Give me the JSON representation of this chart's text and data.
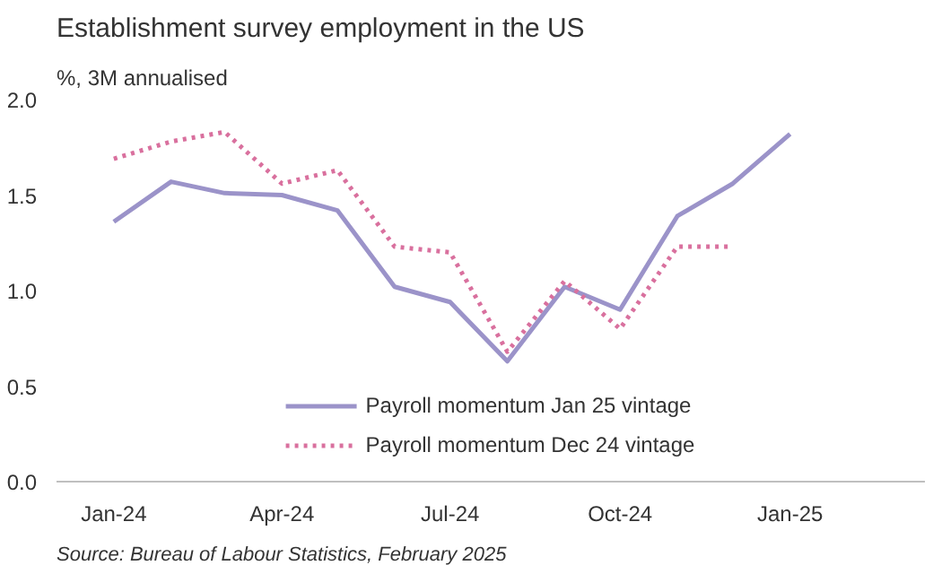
{
  "chart_data": {
    "type": "line",
    "title": "Establishment survey employment in the US",
    "subtitle": "%, 3M annualised",
    "x": [
      "2024-01",
      "2024-02",
      "2024-03",
      "2024-04",
      "2024-05",
      "2024-06",
      "2024-07",
      "2024-08",
      "2024-09",
      "2024-10",
      "2024-11",
      "2024-12",
      "2025-01"
    ],
    "series": [
      {
        "name": "Payroll momentum Jan 25 vintage",
        "color": "#9b93c9",
        "line_style": "solid",
        "values": [
          1.36,
          1.57,
          1.51,
          1.5,
          1.42,
          1.02,
          0.94,
          0.63,
          1.02,
          0.9,
          1.39,
          1.56,
          1.82
        ]
      },
      {
        "name": "Payroll momentum Dec 24 vintage",
        "color": "#d9709e",
        "line_style": "dotted",
        "values": [
          1.69,
          1.78,
          1.83,
          1.56,
          1.63,
          1.23,
          1.2,
          0.68,
          1.05,
          0.8,
          1.23,
          1.23,
          null
        ]
      }
    ],
    "xlim": [
      "2023-12",
      "2025-03-15"
    ],
    "xticks": [
      {
        "value": "2024-01",
        "label": "Jan-24"
      },
      {
        "value": "2024-04",
        "label": "Apr-24"
      },
      {
        "value": "2024-07",
        "label": "Jul-24"
      },
      {
        "value": "2024-10",
        "label": "Oct-24"
      },
      {
        "value": "2025-01",
        "label": "Jan-25"
      }
    ],
    "ylim": [
      0,
      2
    ],
    "yticks": [
      {
        "value": 0,
        "label": "0.0"
      },
      {
        "value": 0.5,
        "label": "0.5"
      },
      {
        "value": 1,
        "label": "1.0"
      },
      {
        "value": 1.5,
        "label": "1.5"
      },
      {
        "value": 2,
        "label": "2.0"
      }
    ],
    "grid": false,
    "legend": "bottom",
    "marker": "none",
    "annotations": [
      "Source: Bureau of Labour Statistics, February 2025"
    ]
  }
}
